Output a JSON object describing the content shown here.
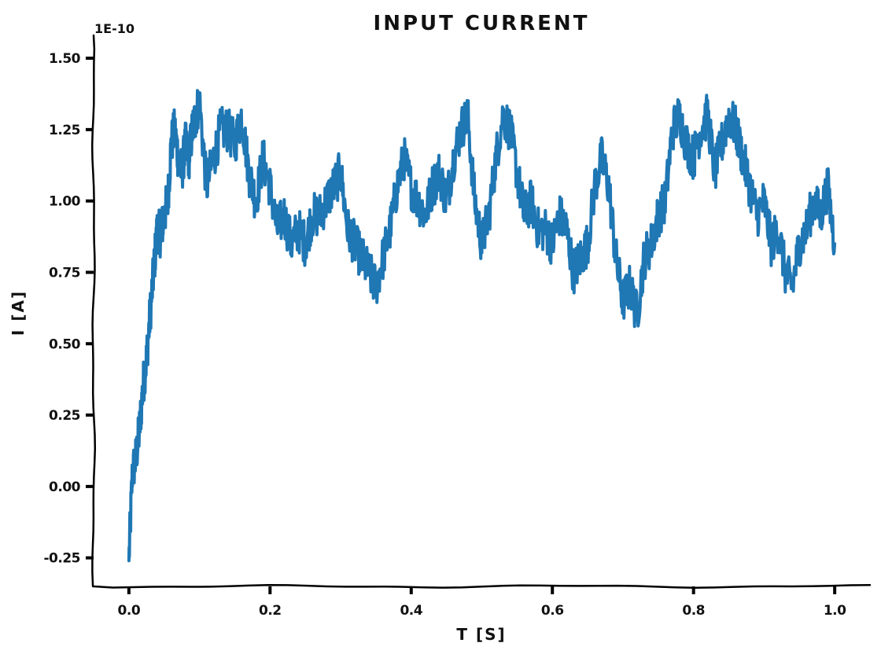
{
  "chart_data": {
    "type": "line",
    "title": "INPUT CURRENT",
    "xlabel": "T [S]",
    "ylabel": "I [A]",
    "y_exponent_label": "1E-10",
    "y_scale": 1e-10,
    "xlim": [
      -0.05,
      1.05
    ],
    "ylim": [
      -0.35,
      1.58
    ],
    "x_ticks": [
      0.0,
      0.2,
      0.4,
      0.6,
      0.8,
      1.0
    ],
    "x_tick_labels": [
      "0.0",
      "0.2",
      "0.4",
      "0.6",
      "0.8",
      "1.0"
    ],
    "y_ticks": [
      -0.25,
      0.0,
      0.25,
      0.5,
      0.75,
      1.0,
      1.25,
      1.5
    ],
    "y_tick_labels": [
      "-0.25",
      "0.00",
      "0.25",
      "0.50",
      "0.75",
      "1.00",
      "1.25",
      "1.50"
    ],
    "grid": false,
    "line_color": "#1f77b4",
    "series": [
      {
        "x": [
          0.0,
          0.005,
          0.01,
          0.015,
          0.02,
          0.025,
          0.03,
          0.035,
          0.04,
          0.045,
          0.05,
          0.055,
          0.06,
          0.065,
          0.07,
          0.075,
          0.08,
          0.085,
          0.09,
          0.095,
          0.1,
          0.11,
          0.12,
          0.13,
          0.14,
          0.15,
          0.16,
          0.17,
          0.18,
          0.19,
          0.2,
          0.21,
          0.22,
          0.23,
          0.24,
          0.25,
          0.26,
          0.27,
          0.28,
          0.29,
          0.3,
          0.31,
          0.32,
          0.33,
          0.34,
          0.35,
          0.36,
          0.37,
          0.38,
          0.39,
          0.4,
          0.41,
          0.42,
          0.43,
          0.44,
          0.45,
          0.46,
          0.47,
          0.48,
          0.49,
          0.5,
          0.51,
          0.52,
          0.53,
          0.54,
          0.55,
          0.56,
          0.57,
          0.58,
          0.59,
          0.6,
          0.61,
          0.62,
          0.63,
          0.64,
          0.65,
          0.66,
          0.67,
          0.68,
          0.69,
          0.7,
          0.71,
          0.72,
          0.73,
          0.74,
          0.75,
          0.76,
          0.77,
          0.78,
          0.79,
          0.8,
          0.81,
          0.82,
          0.83,
          0.84,
          0.85,
          0.86,
          0.87,
          0.88,
          0.89,
          0.9,
          0.91,
          0.92,
          0.93,
          0.94,
          0.95,
          0.96,
          0.97,
          0.98,
          0.99,
          1.0
        ],
        "y": [
          -0.26,
          0.05,
          0.1,
          0.2,
          0.35,
          0.45,
          0.6,
          0.75,
          0.9,
          0.88,
          0.95,
          1.0,
          1.2,
          1.25,
          1.15,
          1.1,
          1.2,
          1.15,
          1.25,
          1.3,
          1.35,
          1.05,
          1.15,
          1.25,
          1.25,
          1.2,
          1.3,
          1.1,
          1.0,
          1.15,
          1.05,
          0.9,
          0.95,
          0.85,
          0.9,
          0.85,
          0.95,
          0.95,
          1.0,
          1.05,
          1.1,
          0.9,
          0.85,
          0.8,
          0.75,
          0.7,
          0.8,
          0.9,
          1.05,
          1.15,
          1.05,
          1.0,
          0.95,
          1.05,
          1.1,
          1.0,
          1.15,
          1.25,
          1.3,
          1.0,
          0.85,
          0.95,
          1.15,
          1.3,
          1.25,
          1.1,
          0.95,
          1.0,
          0.9,
          0.9,
          0.85,
          0.95,
          0.9,
          0.75,
          0.8,
          0.85,
          1.05,
          1.15,
          1.05,
          0.8,
          0.65,
          0.7,
          0.6,
          0.8,
          0.85,
          0.95,
          1.0,
          1.25,
          1.3,
          1.2,
          1.15,
          1.25,
          1.3,
          1.1,
          1.2,
          1.3,
          1.25,
          1.15,
          1.05,
          0.95,
          1.0,
          0.85,
          0.9,
          0.75,
          0.7,
          0.85,
          0.9,
          1.0,
          0.95,
          1.05,
          0.85
        ]
      }
    ]
  }
}
